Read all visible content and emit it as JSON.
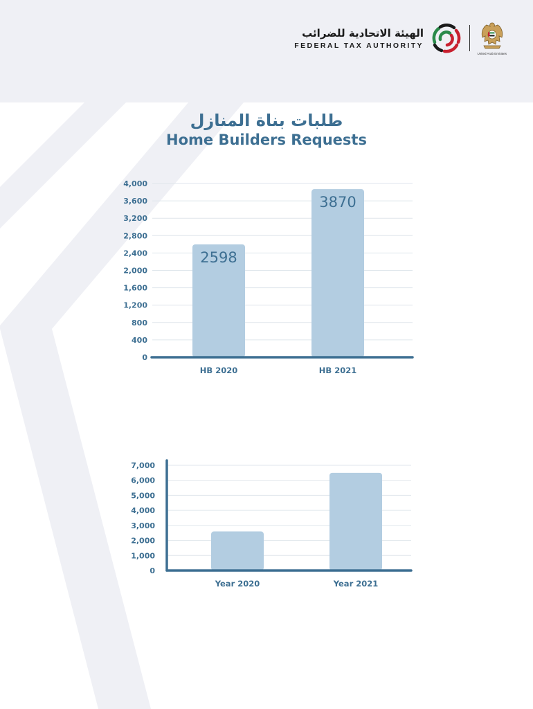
{
  "header": {
    "org_arabic": "الهيئة الاتحادية للضرائب",
    "org_english": "FEDERAL TAX AUTHORITY",
    "emblem_caption": "United Arab Emirates"
  },
  "title": {
    "arabic": "طلبات بناة المنازل",
    "english": "Home Builders Requests"
  },
  "colors": {
    "bar": "#b3cde1",
    "axis": "#3d6f92",
    "grid": "#dfe6ec",
    "text": "#3d6f92"
  },
  "chart_data": [
    {
      "type": "bar",
      "categories": [
        "HB 2020",
        "HB 2021"
      ],
      "values": [
        2598,
        3870
      ],
      "data_labels": [
        "2598",
        "3870"
      ],
      "yticks": [
        0,
        400,
        800,
        1200,
        1600,
        2000,
        2400,
        2800,
        3200,
        3600,
        4000
      ],
      "ytick_labels": [
        "0",
        "400",
        "800",
        "1,200",
        "1,600",
        "2,000",
        "2,400",
        "2,800",
        "3,200",
        "3,600",
        "4,000"
      ],
      "ylim": [
        0,
        4000
      ],
      "grid": true,
      "y_axis_line": false
    },
    {
      "type": "bar",
      "categories": [
        "Year 2020",
        "Year 2021"
      ],
      "values": [
        2600,
        6500
      ],
      "data_labels": [],
      "yticks": [
        0,
        1000,
        2000,
        3000,
        4000,
        5000,
        6000,
        7000
      ],
      "ytick_labels": [
        "0",
        "1,000",
        "2,000",
        "3,000",
        "4,000",
        "5,000",
        "6,000",
        "7,000"
      ],
      "ylim": [
        0,
        7000
      ],
      "grid": true,
      "y_axis_line": true
    }
  ]
}
